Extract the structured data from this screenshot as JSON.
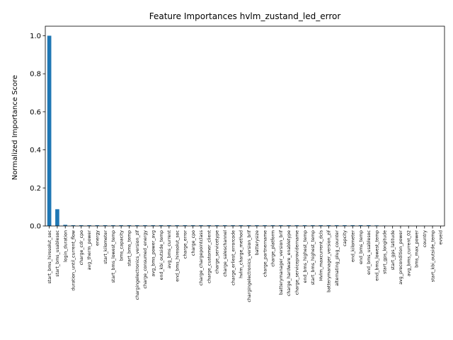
{
  "chart_data": {
    "type": "bar",
    "title": "Feature Importances hvlm_zustand_led_error",
    "xlabel": "",
    "ylabel": "Normalized Importance Score",
    "ylim": [
      0,
      1.05
    ],
    "yticks": [
      0.0,
      0.2,
      0.4,
      0.6,
      0.8,
      1.0
    ],
    "ytick_labels": [
      "0.0",
      "0.2",
      "0.4",
      "0.6",
      "0.8",
      "1.0"
    ],
    "grid": false,
    "bar_color": "#1f77b4",
    "categories": [
      "start_bms_hiresolut_soc",
      "start_bms_usablesoc",
      "login_duration",
      "duration_until_current_flow",
      "charge_cdr_cpo",
      "avg_therm_power",
      "energy",
      "start_kilometer",
      "start_bms_lowest_temp",
      "bms_capacity",
      "start_bms_temp",
      "chargingelectronics_version_zif",
      "charge_consumed_energy",
      "avg_bms_power_avg",
      "end_kbi_outside_temp",
      "avg_bms_current",
      "end_bms_hiresolut_soc",
      "charge_error",
      "charge_cpo",
      "charge_chargepointclass",
      "charge_customer_client",
      "charge_servicetype",
      "charge_saleschannel",
      "charge_erliest_errorcode",
      "hvlm_charge_method",
      "chargingelectronics_version_brif",
      "batterysize",
      "charge_partnername",
      "charge_platform",
      "batterymanager_version_brif",
      "charge_hardware_enabletype",
      "charge_serviceprovidername",
      "end_bms_highest_temp",
      "start_bms_highest_temp",
      "Hvlm_maxcurrent_dcls",
      "batterymanager_version_zif",
      "alternating_plug_counter",
      "capcity",
      "end_kilometer",
      "end_bms_temp",
      "end_bms_usablesoc",
      "end_bms_lowest_temp",
      "start_gps_longitude",
      "start_gps_latitude",
      "avg_precondition_power",
      "avg_bms_current_02",
      "bms_max_power",
      "country",
      "start_kbi_outside_temp",
      "evseid"
    ],
    "values": [
      1.0,
      0.088,
      0.006,
      0.004,
      0.004,
      0.004,
      0.004,
      0.004,
      0.004,
      0.004,
      0.004,
      0.004,
      0.004,
      0.004,
      0.004,
      0.004,
      0.004,
      0.004,
      0.004,
      0.004,
      0.004,
      0.004,
      0.004,
      0.004,
      0.004,
      0.004,
      0.004,
      0.004,
      0.004,
      0.004,
      0.004,
      0.004,
      0.004,
      0.004,
      0.004,
      0.004,
      0.004,
      0.004,
      0.004,
      0.004,
      0.004,
      0.003,
      0.002,
      0.001,
      0.001,
      0.001,
      0.001,
      0.001,
      0.001,
      0.0
    ]
  }
}
